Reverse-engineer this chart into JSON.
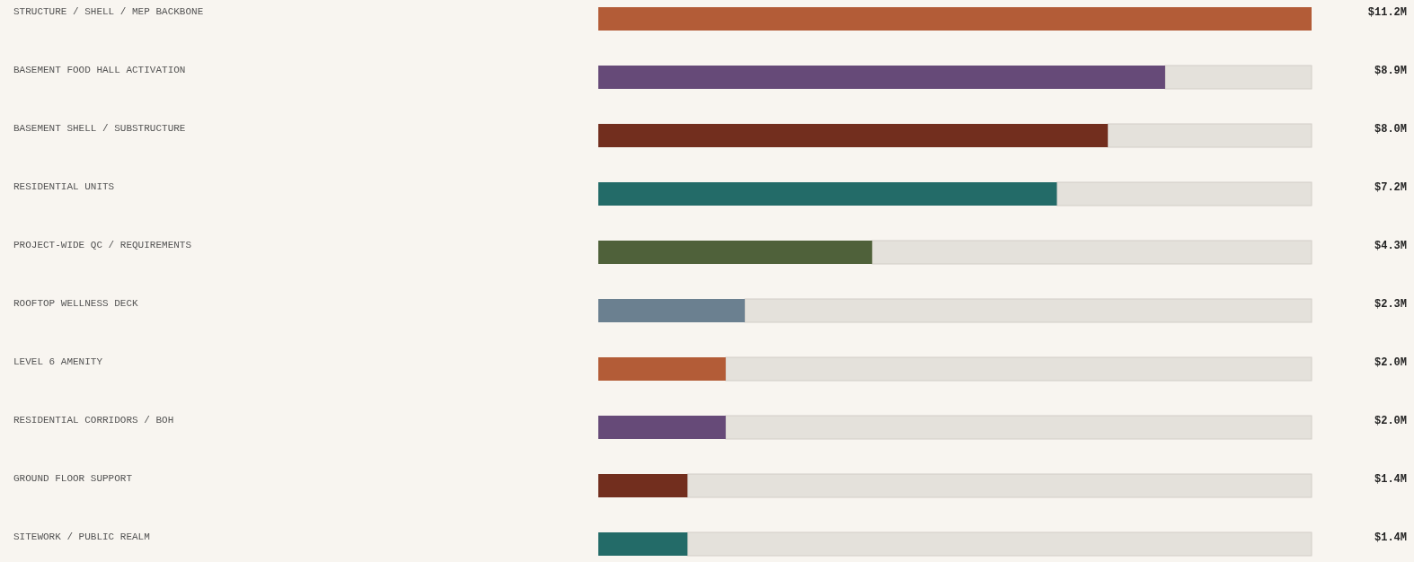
{
  "chart_data": {
    "type": "bar",
    "orientation": "horizontal",
    "categories": [
      "STRUCTURE / SHELL / MEP BACKBONE",
      "BASEMENT FOOD HALL ACTIVATION",
      "BASEMENT SHELL / SUBSTRUCTURE",
      "RESIDENTIAL UNITS",
      "PROJECT-WIDE QC / REQUIREMENTS",
      "ROOFTOP WELLNESS DECK",
      "LEVEL 6 AMENITY",
      "RESIDENTIAL CORRIDORS / BOH",
      "GROUND FLOOR SUPPORT",
      "SITEWORK / PUBLIC REALM"
    ],
    "values": [
      11.2,
      8.9,
      8.0,
      7.2,
      4.3,
      2.3,
      2.0,
      2.0,
      1.4,
      1.4
    ],
    "colors": [
      "#b35c37",
      "#664a78",
      "#722e1e",
      "#236b68",
      "#4f613a",
      "#6b8090",
      "#b35c37",
      "#664a78",
      "#722e1e",
      "#236b68"
    ],
    "value_labels": [
      "$11.2M",
      "$8.9M",
      "$8.0M",
      "$7.2M",
      "$4.3M",
      "$2.3M",
      "$2.0M",
      "$2.0M",
      "$1.4M",
      "$1.4M"
    ],
    "tick_labels": "y"
  }
}
